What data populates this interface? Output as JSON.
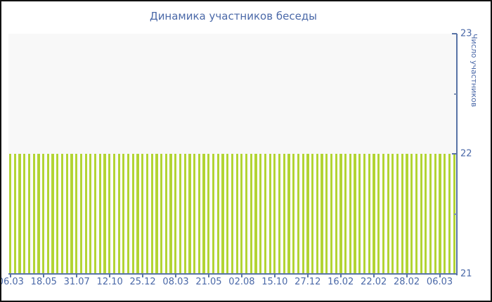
{
  "window": {
    "background": "#ffffff",
    "border_color": "#111111"
  },
  "chart": {
    "title": "Динамика участников беседы",
    "y_axis": {
      "title": "Число участников",
      "tick_values": [
        23,
        22,
        21
      ],
      "tick_labels": [
        "23",
        "22",
        "21"
      ],
      "minor_tick_values": [
        22.5,
        21.5
      ],
      "min": 21,
      "max": 23
    },
    "x_axis": {
      "tick_labels": [
        "06.03",
        "18.05",
        "31.07",
        "12.10",
        "25.12",
        "08.03",
        "21.05",
        "02.08",
        "15.10",
        "27.12",
        "16.02",
        "22.02",
        "28.02",
        "06.03"
      ],
      "labeled_bar_indices": [
        0,
        7,
        14,
        21,
        28,
        35,
        42,
        49,
        56,
        63,
        70,
        77,
        84,
        91
      ]
    }
  },
  "chart_data": {
    "type": "bar",
    "title": "Динамика участников беседы",
    "xlabel": "",
    "ylabel": "Число участников",
    "ylim": [
      21,
      23
    ],
    "grid": false,
    "legend": false,
    "bar_count": 95,
    "values": [
      22,
      22,
      22,
      22,
      22,
      22,
      22,
      22,
      22,
      22,
      22,
      22,
      22,
      22,
      22,
      22,
      22,
      22,
      22,
      22,
      22,
      22,
      22,
      22,
      22,
      22,
      22,
      22,
      22,
      22,
      22,
      22,
      22,
      22,
      22,
      22,
      22,
      22,
      22,
      22,
      22,
      22,
      22,
      22,
      22,
      22,
      22,
      22,
      22,
      22,
      22,
      22,
      22,
      22,
      22,
      22,
      22,
      22,
      22,
      22,
      22,
      22,
      22,
      22,
      22,
      22,
      22,
      22,
      22,
      22,
      22,
      22,
      22,
      22,
      22,
      22,
      22,
      22,
      22,
      22,
      22,
      22,
      22,
      22,
      22,
      22,
      22,
      22,
      22,
      22,
      22,
      22,
      22,
      22,
      22
    ],
    "x_tick_labels": [
      "06.03",
      "18.05",
      "31.07",
      "12.10",
      "25.12",
      "08.03",
      "21.05",
      "02.08",
      "15.10",
      "27.12",
      "16.02",
      "22.02",
      "28.02",
      "06.03"
    ],
    "x_tick_bar_indices": [
      0,
      7,
      14,
      21,
      28,
      35,
      42,
      49,
      56,
      63,
      70,
      77,
      84,
      91
    ],
    "colors": {
      "bar": "#b2d434",
      "bar_gap": "#ffffff",
      "axis_line": "#5873a6",
      "text": "#4b69a8",
      "plot_background": "#f8f8f8"
    }
  }
}
